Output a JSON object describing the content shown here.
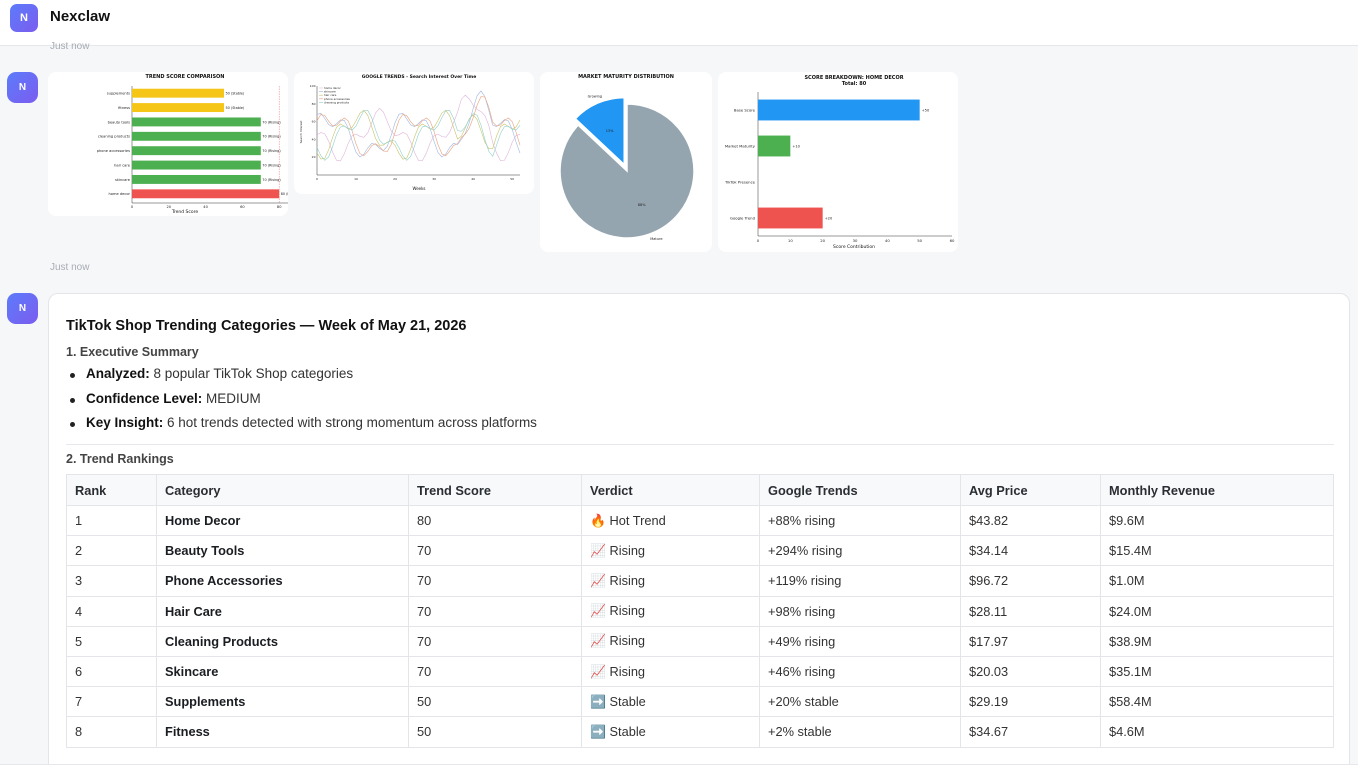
{
  "app": {
    "title": "Nexclaw",
    "avatar_letter": "N"
  },
  "messages": [
    {
      "avatar": "N",
      "timestamp": "Just now"
    },
    {
      "avatar": "N",
      "timestamp": "Just now"
    },
    {
      "avatar": "N"
    }
  ],
  "colors": {
    "accent": "#6a6cf5",
    "green": "#4caf50",
    "yellow": "#f5c518",
    "red": "#ef5350",
    "blue": "#2196f3",
    "gray": "#95a5b0"
  },
  "charts": {
    "trend_score": {
      "title": "TREND SCORE COMPARISON",
      "xlabel": "Trend Score",
      "xticks": [
        "0",
        "20",
        "40",
        "60",
        "80",
        "100"
      ],
      "categories": [
        "supplements",
        "fitness",
        "beauty tools",
        "cleaning products",
        "phone accessories",
        "hair care",
        "skincare",
        "home decor"
      ],
      "values": [
        50,
        50,
        70,
        70,
        70,
        70,
        70,
        80
      ],
      "bar_labels": [
        "50 (Stable)",
        "50 (Stable)",
        "70 (Rising)",
        "70 (Rising)",
        "70 (Rising)",
        "70 (Rising)",
        "70 (Rising)",
        "80 (Hot Tre..."
      ],
      "legend": [
        "Hot (80+)",
        "Rising (65+)"
      ]
    },
    "google_trends": {
      "title": "GOOGLE TRENDS - Search Interest Over Time",
      "ylabel": "Search Interest",
      "xlabel": "Weeks",
      "legend": [
        "home decor",
        "skincare",
        "hair care",
        "phone accessories",
        "cleaning products"
      ],
      "yticks": [
        "20",
        "40",
        "60",
        "80",
        "100"
      ],
      "xticks": [
        "0",
        "10",
        "20",
        "30",
        "40",
        "50"
      ]
    },
    "market_maturity": {
      "title": "MARKET MATURITY DISTRIBUTION",
      "slices": [
        {
          "label": "Growing",
          "pct": "13%",
          "value": 13
        },
        {
          "label": "Mature",
          "pct": "88%",
          "value": 87
        }
      ]
    },
    "score_breakdown": {
      "title": "SCORE BREAKDOWN: HOME DECOR",
      "subtitle": "Total: 80",
      "xlabel": "Score Contribution",
      "xticks": [
        "0",
        "10",
        "20",
        "30",
        "40",
        "50",
        "60"
      ],
      "categories": [
        "Base Score",
        "Market Maturity",
        "TikTok Presence",
        "Google Trend"
      ],
      "values": [
        50,
        10,
        0,
        20
      ],
      "bar_labels": [
        "+50",
        "+10",
        "",
        "+20"
      ]
    }
  },
  "report": {
    "title": "TikTok Shop Trending Categories — Week of May 21, 2026",
    "exec_heading": "1. Executive Summary",
    "summary": [
      {
        "label": "Analyzed:",
        "text": " 8 popular TikTok Shop categories"
      },
      {
        "label": "Confidence Level:",
        "text": " MEDIUM"
      },
      {
        "label": "Key Insight:",
        "text": " 6 hot trends detected with strong momentum across platforms"
      }
    ],
    "rank_heading": "2. Trend Rankings",
    "table": {
      "headers": [
        "Rank",
        "Category",
        "Trend Score",
        "Verdict",
        "Google Trends",
        "Avg Price",
        "Monthly Revenue"
      ],
      "rows": [
        [
          "1",
          "Home Decor",
          "80",
          "🔥 Hot Trend",
          "+88% rising",
          "$43.82",
          "$9.6M"
        ],
        [
          "2",
          "Beauty Tools",
          "70",
          "📈 Rising",
          "+294% rising",
          "$34.14",
          "$15.4M"
        ],
        [
          "3",
          "Phone Accessories",
          "70",
          "📈 Rising",
          "+119% rising",
          "$96.72",
          "$1.0M"
        ],
        [
          "4",
          "Hair Care",
          "70",
          "📈 Rising",
          "+98% rising",
          "$28.11",
          "$24.0M"
        ],
        [
          "5",
          "Cleaning Products",
          "70",
          "📈 Rising",
          "+49% rising",
          "$17.97",
          "$38.9M"
        ],
        [
          "6",
          "Skincare",
          "70",
          "📈 Rising",
          "+46% rising",
          "$20.03",
          "$35.1M"
        ],
        [
          "7",
          "Supplements",
          "50",
          "➡️ Stable",
          "+20% stable",
          "$29.19",
          "$58.4M"
        ],
        [
          "8",
          "Fitness",
          "50",
          "➡️ Stable",
          "+2% stable",
          "$34.67",
          "$4.6M"
        ]
      ]
    }
  }
}
